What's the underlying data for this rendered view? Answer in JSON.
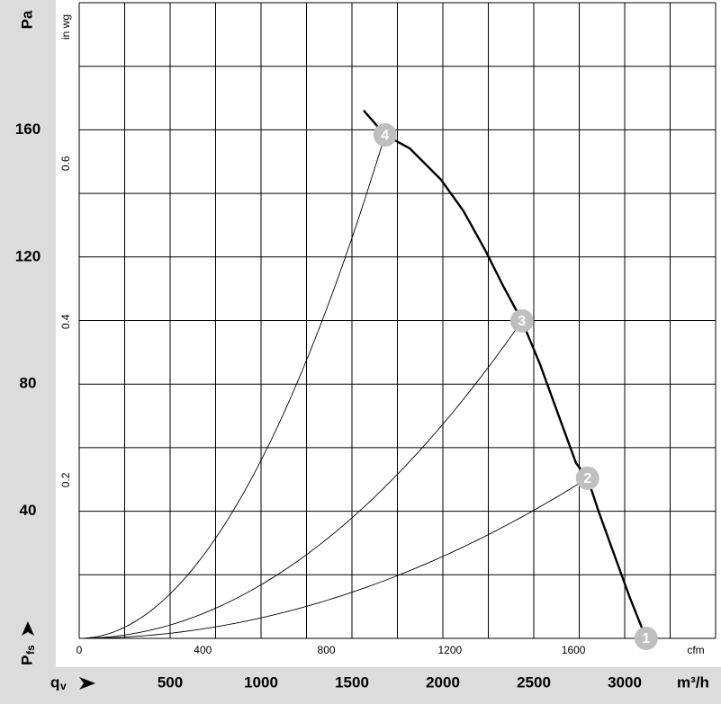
{
  "chart_data": {
    "type": "fan-curve",
    "y_unit": "Pa",
    "y2_unit": "in wg",
    "x_unit": "m³/h",
    "x2_unit": "cfm",
    "x_symbol": "q",
    "x_symbol_sub": "v",
    "y_symbol": "P",
    "y_symbol_sub": "fs",
    "xlim": [
      0,
      3500
    ],
    "xticks": [
      500,
      1000,
      1500,
      2000,
      2500,
      3000
    ],
    "xgrid": [
      0,
      250,
      500,
      750,
      1000,
      1250,
      1500,
      1750,
      2000,
      2250,
      2500,
      2750,
      3000,
      3250,
      3500
    ],
    "ylim": [
      0,
      200
    ],
    "yticks": [
      40,
      80,
      120,
      160
    ],
    "ygrid": [
      0,
      20,
      40,
      60,
      80,
      100,
      120,
      140,
      160,
      180,
      200
    ],
    "x2lim": [
      0,
      2060
    ],
    "x2ticks": [
      0,
      400,
      800,
      1200,
      1600
    ],
    "y2lim": [
      0,
      0.803
    ],
    "y2ticks": [
      0.2,
      0.4,
      0.6
    ],
    "curve": {
      "color": "#000000",
      "x": [
        1564,
        1682,
        1817,
        1990,
        2114,
        2237,
        2336,
        2435,
        2534,
        2633,
        2732,
        2796,
        2855,
        2930,
        3029,
        3118
      ],
      "y": [
        166.1,
        158.4,
        154.2,
        144.3,
        134.4,
        121.7,
        110.4,
        99.9,
        86.3,
        70.7,
        55.2,
        50.4,
        40.2,
        28.3,
        12.7,
        0
      ]
    },
    "operating_points": [
      {
        "label": "1",
        "x": 3118,
        "y": 0
      },
      {
        "label": "2",
        "x": 2796,
        "y": 50.4
      },
      {
        "label": "3",
        "x": 2435,
        "y": 99.9
      },
      {
        "label": "4",
        "x": 1682,
        "y": 158.4
      }
    ]
  }
}
